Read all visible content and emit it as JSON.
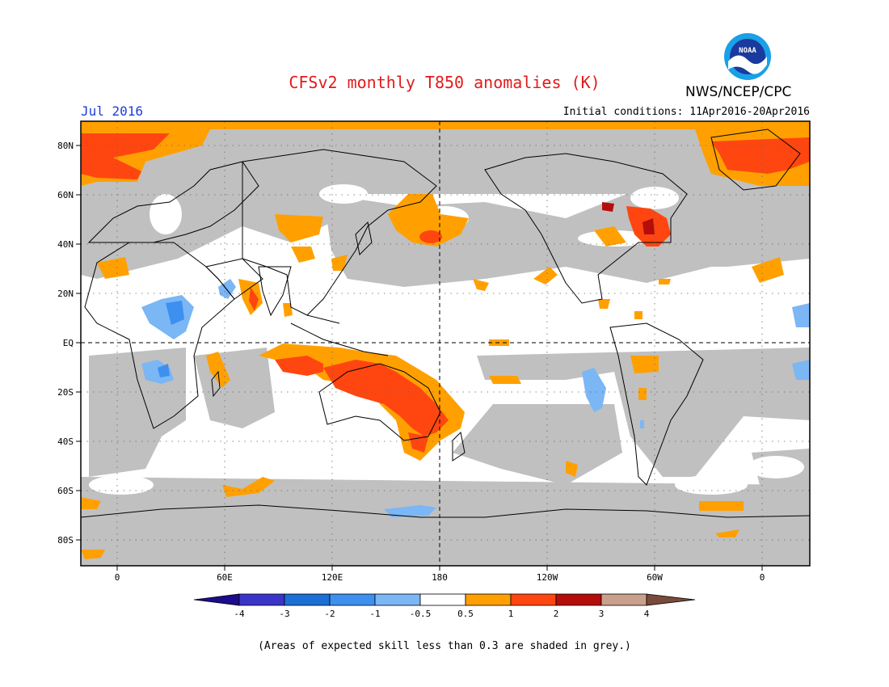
{
  "title": "CFSv2 monthly T850 anomalies (K)",
  "month": "Jul 2016",
  "organization": "NWS/NCEP/CPC",
  "logo_text": "NOAA",
  "initial_conditions": "Initial conditions: 11Apr2016-20Apr2016",
  "footnote": "(Areas of expected skill less than 0.3 are shaded in grey.)",
  "axes": {
    "lat_labels": [
      "80N",
      "60N",
      "40N",
      "20N",
      "EQ",
      "20S",
      "40S",
      "60S",
      "80S"
    ],
    "lon_labels": [
      "0",
      "60E",
      "120E",
      "180",
      "120W",
      "60W",
      "0"
    ]
  },
  "colorbar": {
    "ticks": [
      "-4",
      "-3",
      "-2",
      "-1",
      "-0.5",
      "0.5",
      "1",
      "2",
      "3",
      "4"
    ],
    "colors": [
      "#1c0b8c",
      "#3a34c8",
      "#1b6fd6",
      "#3d8ff0",
      "#7bb6f5",
      "#ffffff",
      "#ffa000",
      "#ff4610",
      "#b50c0c",
      "#c9a08c",
      "#7a4a3a"
    ]
  },
  "colors": {
    "grey": "#c0c0c0",
    "orange": "#ffa000",
    "red": "#ff4610",
    "darkred": "#b50c0c",
    "lightblue": "#7bb6f5",
    "blue": "#3d8ff0"
  }
}
